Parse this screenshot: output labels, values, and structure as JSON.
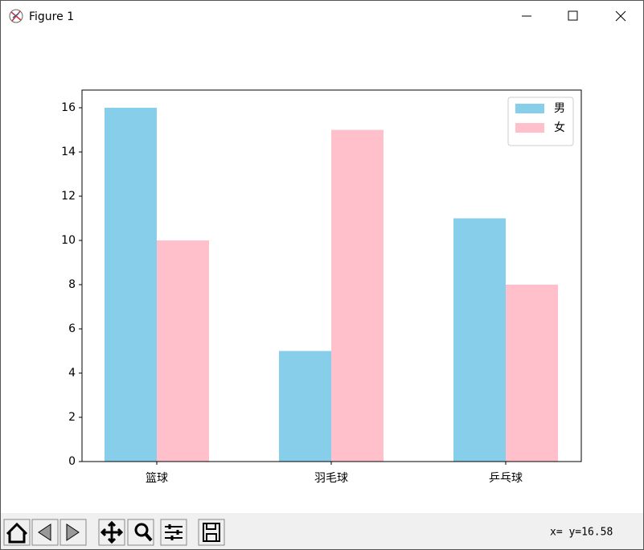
{
  "window": {
    "title": "Figure 1",
    "status": "x= y=16.58"
  },
  "chart_data": {
    "type": "bar",
    "categories": [
      "篮球",
      "羽毛球",
      "乒乓球"
    ],
    "series": [
      {
        "name": "男",
        "color": "#87ceeb",
        "values": [
          16,
          5,
          11
        ]
      },
      {
        "name": "女",
        "color": "#ffc0cb",
        "values": [
          10,
          15,
          8
        ]
      }
    ],
    "ylim": [
      0,
      16.8
    ],
    "yticks": [
      0,
      2,
      4,
      6,
      8,
      10,
      12,
      14,
      16
    ],
    "legend": "upper right",
    "grid": false
  }
}
